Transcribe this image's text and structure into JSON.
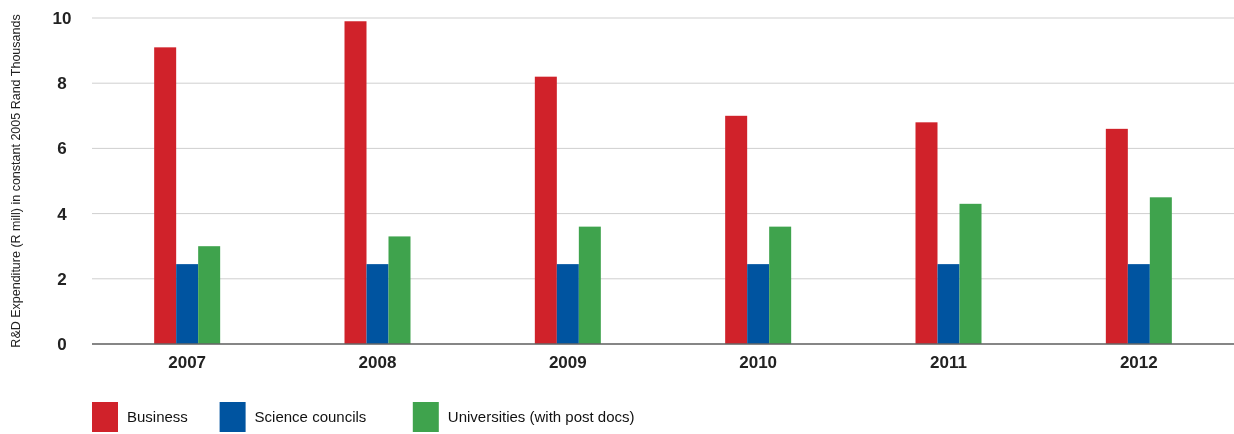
{
  "chart_data": {
    "type": "bar",
    "ylabel": "R&D Expenditure (R mill) in constant 2005 Rand Thousands",
    "categories": [
      "2007",
      "2008",
      "2009",
      "2010",
      "2011",
      "2012"
    ],
    "series": [
      {
        "name": "Business",
        "color": "#d0222a",
        "values": [
          9.1,
          9.9,
          8.2,
          7.0,
          6.8,
          6.6
        ]
      },
      {
        "name": "Science councils",
        "color": "#0054a0",
        "values": [
          2.45,
          2.45,
          2.45,
          2.45,
          2.45,
          2.45
        ]
      },
      {
        "name": "Universities (with post docs)",
        "color": "#3fa34d",
        "values": [
          3.0,
          3.3,
          3.6,
          3.6,
          4.3,
          4.5
        ]
      }
    ],
    "ylim": [
      0,
      10
    ],
    "yticks": [
      0,
      2,
      4,
      6,
      8,
      10
    ],
    "grid": "y",
    "legend": "bottom left"
  }
}
